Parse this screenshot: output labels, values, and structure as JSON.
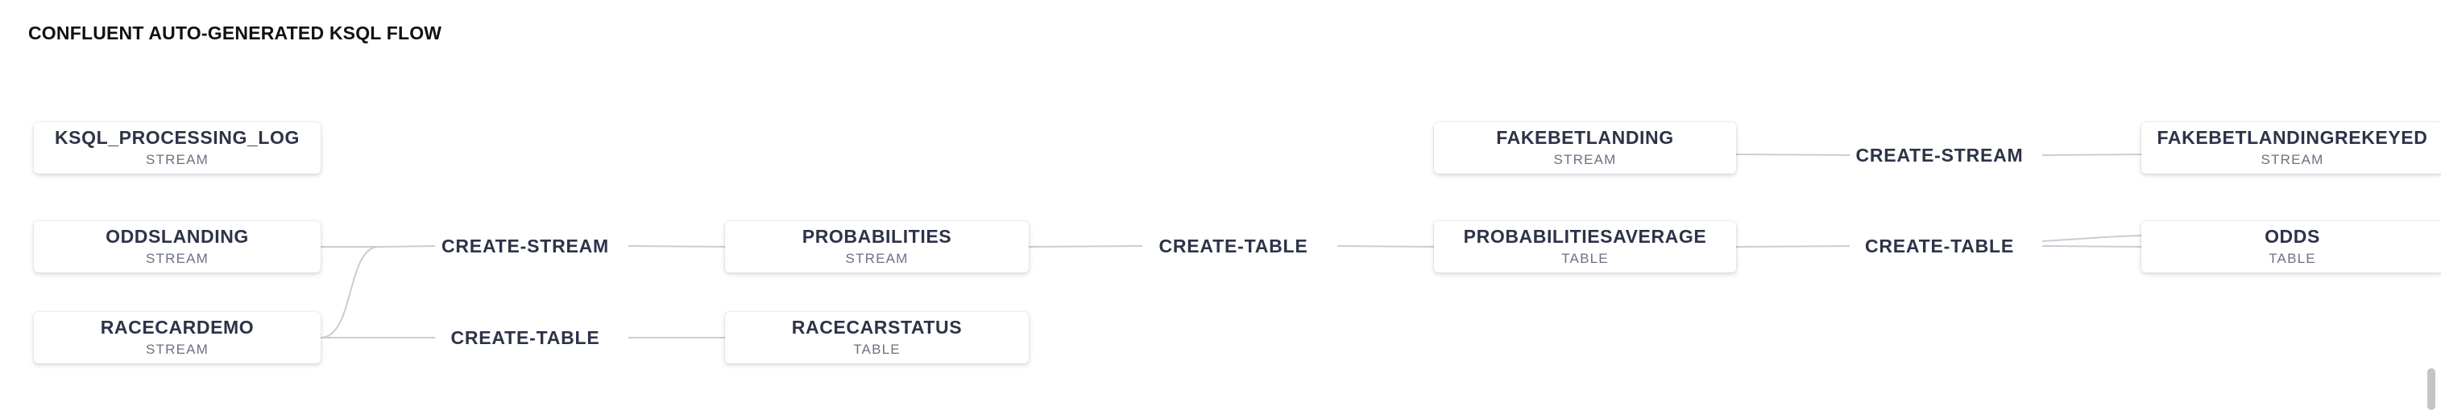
{
  "title": "CONFLUENT AUTO-GENERATED KSQL FLOW",
  "nodes": [
    {
      "name": "KSQL_PROCESSING_LOG",
      "type": "STREAM"
    },
    {
      "name": "ODDSLANDING",
      "type": "STREAM"
    },
    {
      "name": "RACECARDEMO",
      "type": "STREAM"
    },
    {
      "name": "PROBABILITIES",
      "type": "STREAM"
    },
    {
      "name": "RACECARSTATUS",
      "type": "TABLE"
    },
    {
      "name": "FAKEBETLANDING",
      "type": "STREAM"
    },
    {
      "name": "PROBABILITIESAVERAGE",
      "type": "TABLE"
    },
    {
      "name": "FAKEBETLANDINGREKEYED",
      "type": "STREAM"
    },
    {
      "name": "ODDS",
      "type": "TABLE"
    }
  ],
  "operations": [
    {
      "label": "CREATE-STREAM"
    },
    {
      "label": "CREATE-TABLE"
    },
    {
      "label": "CREATE-TABLE"
    },
    {
      "label": "CREATE-STREAM"
    },
    {
      "label": "CREATE-TABLE"
    }
  ],
  "colors": {
    "edge": "#c9ccd4",
    "node_text": "#2d3347",
    "type_text": "#6b7183"
  }
}
